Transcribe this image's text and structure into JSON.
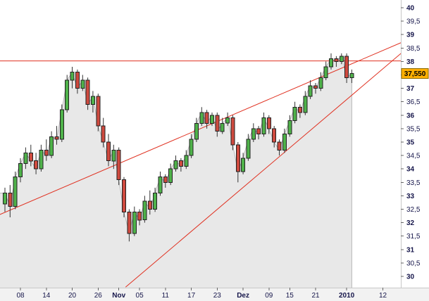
{
  "chart_data": {
    "type": "candlestick",
    "title": "",
    "y_axis": {
      "min": 30,
      "max": 40,
      "step": 0.5,
      "position": "right",
      "decimal_separator": ",",
      "bold_integers": true
    },
    "x_axis": {
      "labels": [
        {
          "text": "08",
          "index": 3,
          "bold": false
        },
        {
          "text": "14",
          "index": 8,
          "bold": false
        },
        {
          "text": "20",
          "index": 13,
          "bold": false
        },
        {
          "text": "26",
          "index": 18,
          "bold": false
        },
        {
          "text": "Nov",
          "index": 22,
          "bold": true
        },
        {
          "text": "05",
          "index": 26,
          "bold": false
        },
        {
          "text": "11",
          "index": 31,
          "bold": false
        },
        {
          "text": "17",
          "index": 36,
          "bold": false
        },
        {
          "text": "23",
          "index": 41,
          "bold": false
        },
        {
          "text": "Dez",
          "index": 46,
          "bold": true
        },
        {
          "text": "09",
          "index": 51,
          "bold": false
        },
        {
          "text": "15",
          "index": 55,
          "bold": false
        },
        {
          "text": "21",
          "index": 60,
          "bold": false
        },
        {
          "text": "2010",
          "index": 66,
          "bold": true
        },
        {
          "text": "12",
          "index": 73,
          "bold": false
        }
      ]
    },
    "candles": {
      "format": [
        "open",
        "high",
        "low",
        "close"
      ],
      "values": [
        [
          32.7,
          33.3,
          32.4,
          33.1
        ],
        [
          33.1,
          33.4,
          32.2,
          32.6
        ],
        [
          32.6,
          33.9,
          32.5,
          33.7
        ],
        [
          33.7,
          34.4,
          33.5,
          34.2
        ],
        [
          34.2,
          34.8,
          34.0,
          34.6
        ],
        [
          34.6,
          34.9,
          34.1,
          34.3
        ],
        [
          34.3,
          34.6,
          33.8,
          34.0
        ],
        [
          34.0,
          34.9,
          33.9,
          34.7
        ],
        [
          34.7,
          35.1,
          34.3,
          34.5
        ],
        [
          34.5,
          35.4,
          34.4,
          35.2
        ],
        [
          35.2,
          35.6,
          34.9,
          35.1
        ],
        [
          35.1,
          36.4,
          35.0,
          36.2
        ],
        [
          36.2,
          37.5,
          36.1,
          37.3
        ],
        [
          37.3,
          37.8,
          37.0,
          37.6
        ],
        [
          37.6,
          37.7,
          36.8,
          37.0
        ],
        [
          37.0,
          37.5,
          36.9,
          37.3
        ],
        [
          37.3,
          37.4,
          36.2,
          36.4
        ],
        [
          36.4,
          36.9,
          36.1,
          36.7
        ],
        [
          36.7,
          36.8,
          35.4,
          35.6
        ],
        [
          35.6,
          35.9,
          34.8,
          35.0
        ],
        [
          35.0,
          35.3,
          34.1,
          34.3
        ],
        [
          34.3,
          34.9,
          34.0,
          34.7
        ],
        [
          34.7,
          34.8,
          33.4,
          33.6
        ],
        [
          33.6,
          33.7,
          32.2,
          32.4
        ],
        [
          32.4,
          32.5,
          31.3,
          31.6
        ],
        [
          31.6,
          32.6,
          31.5,
          32.4
        ],
        [
          32.4,
          32.5,
          31.9,
          32.1
        ],
        [
          32.1,
          33.0,
          32.0,
          32.8
        ],
        [
          32.8,
          33.2,
          32.3,
          32.5
        ],
        [
          32.5,
          33.3,
          32.4,
          33.1
        ],
        [
          33.1,
          33.9,
          33.0,
          33.7
        ],
        [
          33.7,
          33.8,
          33.3,
          33.5
        ],
        [
          33.5,
          34.2,
          33.4,
          34.0
        ],
        [
          34.0,
          34.5,
          33.9,
          34.3
        ],
        [
          34.3,
          34.4,
          33.9,
          34.1
        ],
        [
          34.1,
          34.7,
          34.0,
          34.5
        ],
        [
          34.5,
          35.3,
          34.4,
          35.1
        ],
        [
          35.1,
          35.9,
          35.0,
          35.7
        ],
        [
          35.7,
          36.3,
          35.6,
          36.1
        ],
        [
          36.1,
          36.2,
          35.5,
          35.7
        ],
        [
          35.7,
          36.1,
          35.6,
          36.0
        ],
        [
          36.0,
          36.1,
          35.2,
          35.4
        ],
        [
          35.4,
          35.9,
          35.3,
          35.7
        ],
        [
          35.7,
          36.1,
          35.6,
          35.9
        ],
        [
          35.9,
          36.0,
          34.7,
          34.9
        ],
        [
          34.9,
          35.0,
          33.5,
          33.9
        ],
        [
          33.9,
          34.6,
          33.8,
          34.4
        ],
        [
          34.4,
          35.3,
          34.3,
          35.1
        ],
        [
          35.1,
          35.7,
          35.0,
          35.5
        ],
        [
          35.5,
          35.6,
          35.1,
          35.3
        ],
        [
          35.3,
          36.1,
          35.2,
          35.9
        ],
        [
          35.9,
          36.0,
          35.3,
          35.5
        ],
        [
          35.5,
          35.6,
          34.8,
          35.0
        ],
        [
          35.0,
          35.1,
          34.5,
          34.7
        ],
        [
          34.7,
          35.5,
          34.6,
          35.3
        ],
        [
          35.3,
          36.0,
          35.2,
          35.8
        ],
        [
          35.8,
          36.5,
          35.7,
          36.3
        ],
        [
          36.3,
          36.4,
          35.9,
          36.1
        ],
        [
          36.1,
          36.9,
          36.0,
          36.7
        ],
        [
          36.7,
          37.3,
          36.6,
          37.1
        ],
        [
          37.1,
          37.2,
          36.8,
          37.0
        ],
        [
          37.0,
          37.6,
          36.9,
          37.4
        ],
        [
          37.4,
          38.0,
          37.3,
          37.8
        ],
        [
          37.8,
          38.3,
          37.7,
          38.1
        ],
        [
          38.1,
          38.2,
          37.8,
          38.0
        ],
        [
          38.0,
          38.3,
          37.9,
          38.2
        ],
        [
          38.2,
          38.3,
          37.2,
          37.4
        ],
        [
          37.4,
          37.7,
          37.2,
          37.55
        ]
      ]
    },
    "last_price": {
      "value": 37.55,
      "label": "37,550"
    },
    "resistance_line": {
      "price": 38.02
    },
    "trendlines": [
      {
        "x1_index": -1,
        "price1": 32.3,
        "x2_index": 76.5,
        "price2": 38.7
      },
      {
        "x1_index": 23.3,
        "price1": 29.6,
        "x2_index": 76.5,
        "price2": 38.3
      }
    ],
    "colors": {
      "up": "#4fb24a",
      "down": "#cf4a3f",
      "body_border": "#222222",
      "wick": "#333333",
      "area_fill": "#e8e8e8",
      "area_edge": "#b8b8b8",
      "line": "#e03020",
      "label_bg": "#ffb000",
      "label_border": "#8a6a00",
      "label_text": "#000000",
      "axis_text": "#15154a"
    },
    "layout_hints": {
      "grid": false,
      "price_axis_side": "right",
      "area_under_price": true
    }
  }
}
